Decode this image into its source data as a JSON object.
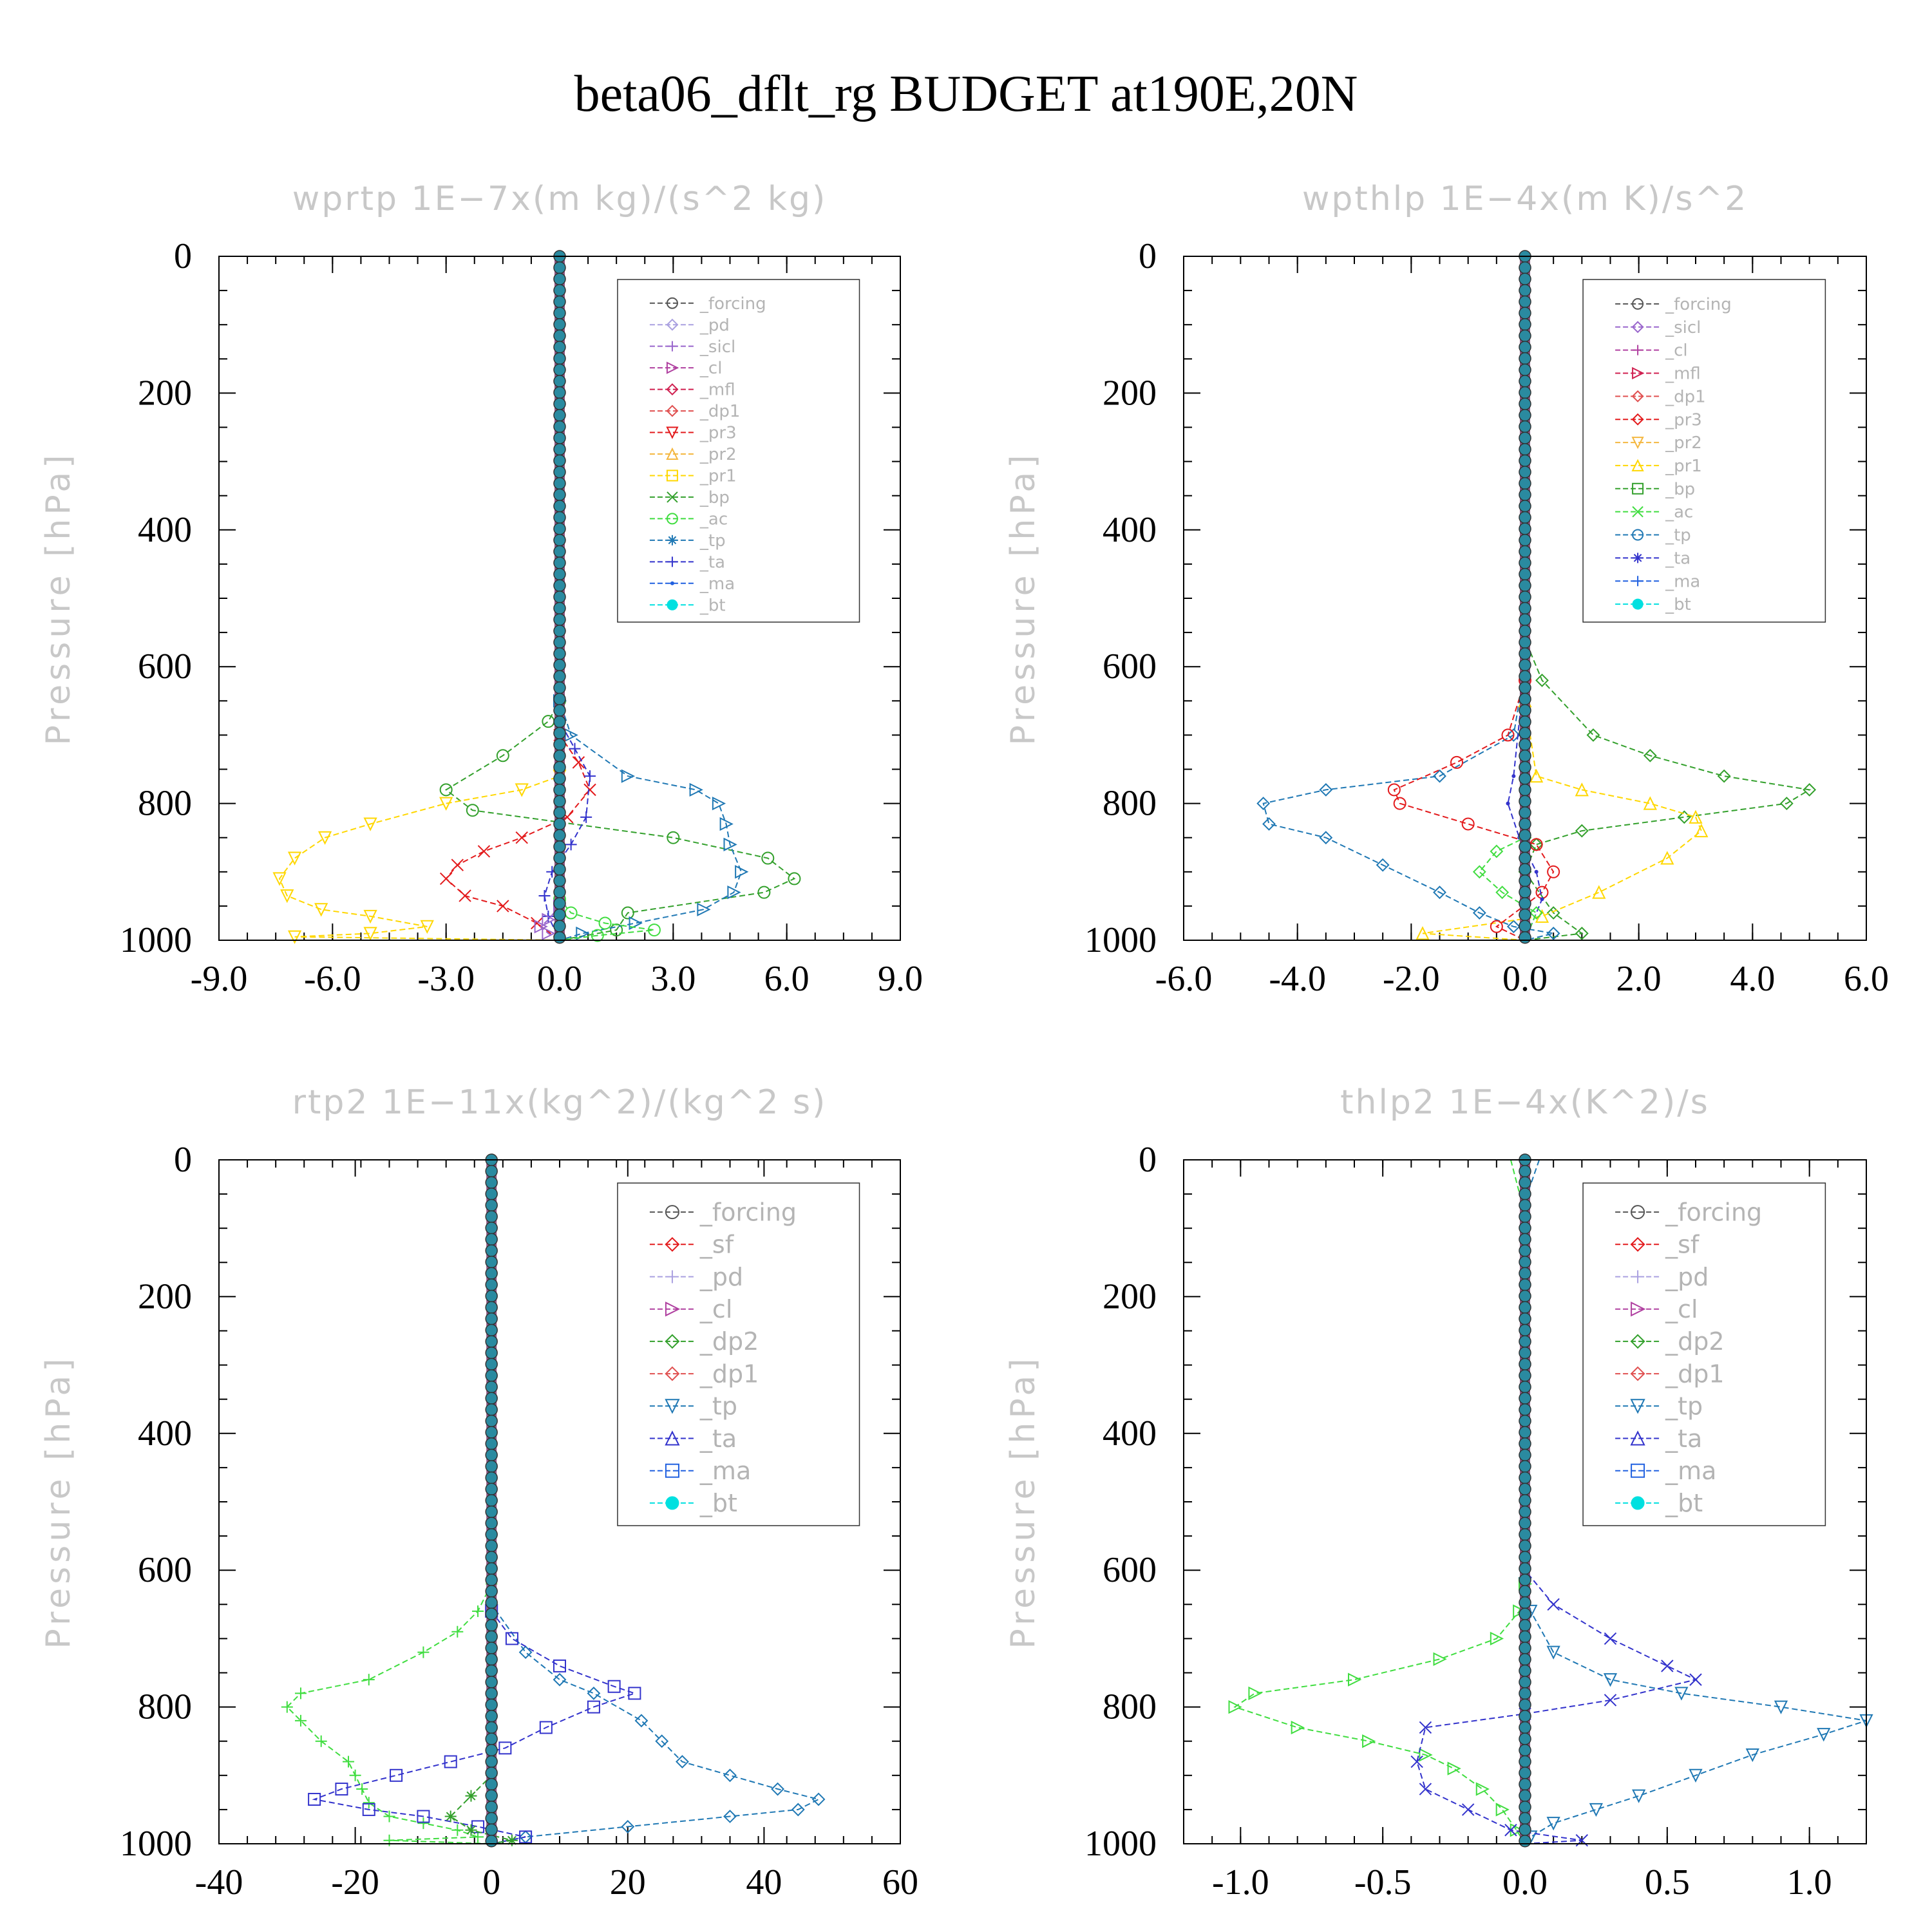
{
  "title": "beta06_dflt_rg  BUDGET at190E,20N",
  "chart_data": [
    {
      "type": "line",
      "title": "wprtp   1E−7x(m kg)/(s^2 kg)",
      "ylabel": "Pressure [hPa]",
      "xlim": [
        -9,
        9
      ],
      "ylim": [
        1000,
        0
      ],
      "xticks": [
        "-9.0",
        "-6.0",
        "-3.0",
        "0.0",
        "3.0",
        "6.0",
        "9.0"
      ],
      "yticks": [
        "0",
        "200",
        "400",
        "600",
        "800",
        "1000"
      ],
      "legend": [
        "_forcing",
        "_pd",
        "_sicl",
        "_cl",
        "_mfl",
        "_dp1",
        "_pr3",
        "_pr2",
        "_pr1",
        "_bp",
        "_ac",
        "_tp",
        "_ta",
        "_ma",
        "_bt"
      ],
      "series": [
        {
          "name": "_bp",
          "color": "#33a02c",
          "x": [
            0,
            0,
            -0.3,
            -1.5,
            -3.0,
            -2.3,
            3.0,
            5.5,
            6.2,
            5.4,
            1.8,
            1.5,
            0
          ],
          "y": [
            0,
            650,
            680,
            730,
            780,
            810,
            850,
            880,
            910,
            930,
            960,
            985,
            1000
          ]
        },
        {
          "name": "_tp",
          "color": "#1f78b4",
          "x": [
            0,
            0,
            0.3,
            1.8,
            3.6,
            4.2,
            4.4,
            4.5,
            4.8,
            4.6,
            3.8,
            2.0,
            0.6,
            0
          ],
          "y": [
            0,
            650,
            700,
            760,
            780,
            800,
            830,
            860,
            900,
            930,
            955,
            975,
            990,
            1000
          ]
        },
        {
          "name": "_pr1",
          "color": "#ffd700",
          "x": [
            0,
            0,
            -1.0,
            -3.0,
            -5.0,
            -6.2,
            -7.0,
            -7.4,
            -7.2,
            -6.3,
            -5.0,
            -3.5,
            -5.0,
            -7.0,
            0
          ],
          "y": [
            0,
            760,
            780,
            800,
            830,
            850,
            880,
            910,
            935,
            955,
            965,
            980,
            990,
            995,
            1000
          ]
        },
        {
          "name": "_pr3",
          "color": "#e31a1c",
          "x": [
            0,
            0,
            0.5,
            0.8,
            0.2,
            -1.0,
            -2.0,
            -2.7,
            -3.0,
            -2.5,
            -1.5,
            -0.6,
            0
          ],
          "y": [
            0,
            700,
            740,
            780,
            820,
            850,
            870,
            890,
            910,
            935,
            950,
            975,
            1000
          ]
        },
        {
          "name": "_ta",
          "color": "#3333cc",
          "x": [
            0,
            0,
            0.4,
            0.8,
            0.7,
            0.3,
            -0.2,
            -0.4,
            -0.3,
            0
          ],
          "y": [
            0,
            680,
            720,
            760,
            820,
            860,
            900,
            935,
            965,
            1000
          ]
        },
        {
          "name": "_ac",
          "color": "#40dd40",
          "x": [
            0,
            0,
            0.3,
            1.2,
            2.5,
            1.0,
            0
          ],
          "y": [
            0,
            940,
            960,
            975,
            985,
            993,
            1000
          ]
        },
        {
          "name": "_sicl",
          "color": "#9966cc",
          "x": [
            0,
            0,
            -0.3,
            -0.5,
            -0.3,
            0
          ],
          "y": [
            0,
            950,
            970,
            980,
            990,
            1000
          ]
        },
        {
          "name": "_bt",
          "color": "#00e0e0",
          "x": [
            0,
            0
          ],
          "y": [
            0,
            1000
          ]
        }
      ]
    },
    {
      "type": "line",
      "title": "wpthlp   1E−4x(m K)/s^2",
      "ylabel": "Pressure [hPa]",
      "xlim": [
        -6,
        6
      ],
      "ylim": [
        1000,
        0
      ],
      "xticks": [
        "-6.0",
        "-4.0",
        "-2.0",
        "0.0",
        "2.0",
        "4.0",
        "6.0"
      ],
      "yticks": [
        "0",
        "200",
        "400",
        "600",
        "800",
        "1000"
      ],
      "legend": [
        "_forcing",
        "_sicl",
        "_cl",
        "_mfl",
        "_dp1",
        "_pr3",
        "_pr2",
        "_pr1",
        "_bp",
        "_ac",
        "_tp",
        "_ta",
        "_ma",
        "_bt"
      ],
      "series": [
        {
          "name": "_bp",
          "color": "#33a02c",
          "x": [
            0,
            0,
            0.3,
            1.2,
            2.2,
            3.5,
            5.0,
            4.6,
            2.8,
            1.0,
            0.2,
            0,
            0.5,
            1.0,
            0
          ],
          "y": [
            0,
            560,
            620,
            700,
            730,
            760,
            780,
            800,
            820,
            840,
            860,
            900,
            960,
            990,
            1000
          ]
        },
        {
          "name": "_tp",
          "color": "#1f78b4",
          "x": [
            0,
            0,
            -0.2,
            -1.5,
            -3.5,
            -4.6,
            -4.5,
            -3.5,
            -2.5,
            -1.5,
            -0.8,
            -0.2,
            0.5,
            0
          ],
          "y": [
            0,
            600,
            700,
            760,
            780,
            800,
            830,
            850,
            890,
            930,
            960,
            980,
            990,
            1000
          ]
        },
        {
          "name": "_pr1",
          "color": "#ffd700",
          "x": [
            0,
            0,
            0.2,
            1.0,
            2.2,
            3.0,
            3.1,
            2.5,
            1.3,
            0.3,
            -1.8,
            0
          ],
          "y": [
            0,
            650,
            760,
            780,
            800,
            820,
            840,
            880,
            930,
            965,
            990,
            1000
          ]
        },
        {
          "name": "_pr3",
          "color": "#e31a1c",
          "x": [
            0,
            0,
            -0.3,
            -1.2,
            -2.3,
            -2.2,
            -1.0,
            0.2,
            0.5,
            0.3,
            -0.5,
            0
          ],
          "y": [
            0,
            620,
            700,
            740,
            780,
            800,
            830,
            860,
            900,
            930,
            980,
            1000
          ]
        },
        {
          "name": "_ta",
          "color": "#3333cc",
          "x": [
            0,
            0,
            -0.2,
            -0.3,
            -0.1,
            0.2,
            0.3,
            0
          ],
          "y": [
            0,
            600,
            760,
            800,
            850,
            900,
            940,
            1000
          ]
        },
        {
          "name": "_ac",
          "color": "#40dd40",
          "x": [
            0,
            0,
            -0.5,
            -0.8,
            -0.4,
            0.2,
            0
          ],
          "y": [
            0,
            850,
            870,
            900,
            930,
            960,
            1000
          ]
        },
        {
          "name": "_bt",
          "color": "#00e0e0",
          "x": [
            0,
            0
          ],
          "y": [
            0,
            1000
          ]
        }
      ]
    },
    {
      "type": "line",
      "title": "rtp2   1E−11x(kg^2)/(kg^2 s)",
      "ylabel": "Pressure [hPa]",
      "xlim": [
        -40,
        60
      ],
      "ylim": [
        1000,
        0
      ],
      "xticks": [
        "-40",
        "-20",
        "0",
        "20",
        "40",
        "60"
      ],
      "yticks": [
        "0",
        "200",
        "400",
        "600",
        "800",
        "1000"
      ],
      "legend": [
        "_forcing",
        "_sf",
        "_pd",
        "_cl",
        "_dp2",
        "_dp1",
        "_tp",
        "_ta",
        "_ma",
        "_bt"
      ],
      "series": [
        {
          "name": "_dp1",
          "color": "#40dd40",
          "x": [
            0,
            0,
            -2,
            -5,
            -10,
            -18,
            -28,
            -30,
            -28,
            -25,
            -21,
            -20,
            -19,
            -18,
            -15,
            -10,
            -5,
            -2,
            -15,
            0
          ],
          "y": [
            0,
            620,
            660,
            690,
            720,
            760,
            780,
            800,
            820,
            850,
            880,
            900,
            920,
            940,
            960,
            970,
            980,
            990,
            995,
            1000
          ]
        },
        {
          "name": "_tp",
          "color": "#1f78b4",
          "x": [
            0,
            0,
            5,
            10,
            15,
            22,
            25,
            28,
            35,
            42,
            48,
            45,
            35,
            20,
            5,
            0
          ],
          "y": [
            0,
            650,
            720,
            760,
            780,
            820,
            850,
            880,
            900,
            920,
            935,
            950,
            960,
            975,
            990,
            1000
          ]
        },
        {
          "name": "_ta",
          "color": "#3333cc",
          "x": [
            0,
            0,
            3,
            10,
            18,
            21,
            15,
            8,
            2,
            -6,
            -14,
            -22,
            -26,
            -18,
            -10,
            -2,
            5,
            0
          ],
          "y": [
            0,
            660,
            700,
            740,
            770,
            780,
            800,
            830,
            860,
            880,
            900,
            920,
            935,
            950,
            960,
            975,
            990,
            1000
          ]
        },
        {
          "name": "_dp2",
          "color": "#33a02c",
          "x": [
            0,
            0,
            -3,
            -6,
            -3,
            3,
            0
          ],
          "y": [
            0,
            900,
            930,
            960,
            980,
            995,
            1000
          ]
        },
        {
          "name": "_bt",
          "color": "#00e0e0",
          "x": [
            0,
            0
          ],
          "y": [
            0,
            1000
          ]
        }
      ]
    },
    {
      "type": "line",
      "title": "thlp2   1E−4x(K^2)/s",
      "ylabel": "Pressure [hPa]",
      "xlim": [
        -1.2,
        1.2
      ],
      "ylim": [
        1000,
        0
      ],
      "xticks": [
        "-1.0",
        "-0.5",
        "0.0",
        "0.5",
        "1.0"
      ],
      "yticks": [
        "0",
        "200",
        "400",
        "600",
        "800",
        "1000"
      ],
      "legend": [
        "_forcing",
        "_sf",
        "_pd",
        "_cl",
        "_dp2",
        "_dp1",
        "_tp",
        "_ta",
        "_ma",
        "_bt"
      ],
      "series": [
        {
          "name": "_dp1",
          "color": "#40dd40",
          "x": [
            -0.05,
            0,
            0,
            -0.02,
            -0.1,
            -0.3,
            -0.6,
            -0.95,
            -1.02,
            -0.8,
            -0.55,
            -0.35,
            -0.25,
            -0.15,
            -0.08,
            -0.03,
            0
          ],
          "y": [
            0,
            80,
            620,
            660,
            700,
            730,
            760,
            780,
            800,
            830,
            850,
            870,
            890,
            920,
            950,
            980,
            1000
          ]
        },
        {
          "name": "_tp",
          "color": "#1f78b4",
          "x": [
            0.05,
            0,
            0,
            0.02,
            0.1,
            0.3,
            0.55,
            0.9,
            1.2,
            1.05,
            0.8,
            0.6,
            0.4,
            0.25,
            0.1,
            0.02,
            0
          ],
          "y": [
            0,
            60,
            620,
            660,
            720,
            760,
            780,
            800,
            820,
            840,
            870,
            900,
            930,
            950,
            970,
            990,
            1000
          ]
        },
        {
          "name": "_ta",
          "color": "#3333cc",
          "x": [
            0,
            0,
            0.1,
            0.3,
            0.5,
            0.6,
            0.3,
            0,
            -0.35,
            -0.38,
            -0.35,
            -0.2,
            -0.05,
            0.2,
            0
          ],
          "y": [
            0,
            600,
            650,
            700,
            740,
            760,
            790,
            810,
            830,
            880,
            920,
            950,
            980,
            995,
            1000
          ]
        },
        {
          "name": "_bt",
          "color": "#00e0e0",
          "x": [
            0,
            0
          ],
          "y": [
            0,
            1000
          ]
        }
      ]
    }
  ]
}
